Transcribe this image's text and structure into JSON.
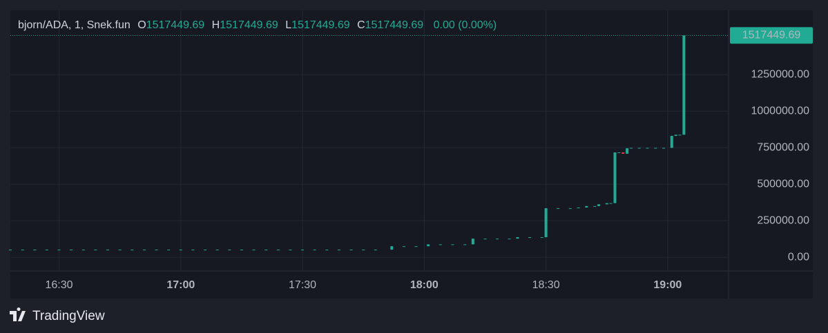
{
  "chart_data": {
    "type": "candlestick",
    "header": {
      "symbol": "bjorn/ADA, 1, Snek.fun",
      "o_label": "O",
      "o": 1517449.69,
      "h_label": "H",
      "h": 1517449.69,
      "l_label": "L",
      "l": 1517449.69,
      "c_label": "C",
      "c": 1517449.69,
      "change": "0.00 (0.00%)"
    },
    "brand": "TradingView",
    "up_color": "#22ab94",
    "down_color": "#f23645",
    "grid": true,
    "last_price": 1517449.69,
    "xlim": [
      "16:18",
      "19:15"
    ],
    "xticks": [
      "16:30",
      "17:00",
      "17:30",
      "18:00",
      "18:30",
      "19:00"
    ],
    "ylim": [
      -94000,
      1689000
    ],
    "yticks": [
      {
        "value": 0,
        "label": "0.00"
      },
      {
        "value": 250000,
        "label": "250000.00"
      },
      {
        "value": 500000,
        "label": "500000.00"
      },
      {
        "value": 750000,
        "label": "750000.00"
      },
      {
        "value": 1000000,
        "label": "1000000.00"
      },
      {
        "value": 1250000,
        "label": "1250000.00"
      }
    ],
    "x": [
      "16:18",
      "16:21",
      "16:24",
      "16:27",
      "16:30",
      "16:33",
      "16:36",
      "16:39",
      "16:42",
      "16:45",
      "16:48",
      "16:51",
      "16:54",
      "16:57",
      "17:00",
      "17:03",
      "17:06",
      "17:09",
      "17:12",
      "17:15",
      "17:18",
      "17:21",
      "17:24",
      "17:27",
      "17:30",
      "17:33",
      "17:36",
      "17:39",
      "17:42",
      "17:45",
      "17:48",
      "17:52",
      "17:55",
      "17:58",
      "18:01",
      "18:04",
      "18:07",
      "18:10",
      "18:12",
      "18:15",
      "18:18",
      "18:21",
      "18:23",
      "18:26",
      "18:29",
      "18:30",
      "18:33",
      "18:36",
      "18:38",
      "18:40",
      "18:42",
      "18:43",
      "18:45",
      "18:46",
      "18:47",
      "18:48",
      "18:49",
      "18:50",
      "18:51",
      "18:53",
      "18:55",
      "18:57",
      "18:59",
      "19:01",
      "19:02",
      "19:03",
      "19:04"
    ],
    "open": [
      52000,
      52000,
      52000,
      52000,
      52000,
      52000,
      52000,
      52000,
      52000,
      52000,
      52000,
      52000,
      52000,
      52000,
      52000,
      52000,
      52000,
      52000,
      52000,
      52000,
      52000,
      52000,
      52000,
      52000,
      52000,
      52000,
      52000,
      52000,
      52000,
      52000,
      52000,
      52000,
      75000,
      75000,
      75000,
      88000,
      88000,
      88000,
      88000,
      127000,
      127000,
      127000,
      127000,
      137000,
      137000,
      137000,
      335000,
      335000,
      335000,
      340000,
      350000,
      350000,
      362000,
      370000,
      370000,
      717000,
      717000,
      708000,
      745000,
      748000,
      748000,
      748000,
      748000,
      748000,
      830000,
      838000,
      838000
    ],
    "high": [
      52000,
      52000,
      52000,
      52000,
      52000,
      52000,
      52000,
      52000,
      52000,
      52000,
      52000,
      52000,
      52000,
      52000,
      52000,
      52000,
      52000,
      52000,
      52000,
      52000,
      52000,
      52000,
      52000,
      52000,
      52000,
      52000,
      52000,
      52000,
      52000,
      52000,
      52000,
      75000,
      75000,
      75000,
      88000,
      88000,
      88000,
      88000,
      127000,
      127000,
      127000,
      127000,
      137000,
      137000,
      137000,
      335000,
      335000,
      335000,
      340000,
      350000,
      350000,
      362000,
      370000,
      370000,
      717000,
      717000,
      717000,
      745000,
      748000,
      748000,
      748000,
      748000,
      748000,
      830000,
      838000,
      838000,
      1517449.69
    ],
    "low": [
      52000,
      52000,
      52000,
      52000,
      52000,
      52000,
      52000,
      52000,
      52000,
      52000,
      52000,
      52000,
      52000,
      52000,
      52000,
      52000,
      52000,
      52000,
      52000,
      52000,
      52000,
      52000,
      52000,
      52000,
      52000,
      52000,
      52000,
      52000,
      52000,
      52000,
      52000,
      52000,
      75000,
      75000,
      75000,
      88000,
      88000,
      88000,
      88000,
      127000,
      127000,
      127000,
      127000,
      137000,
      137000,
      137000,
      335000,
      335000,
      335000,
      340000,
      350000,
      350000,
      362000,
      370000,
      370000,
      717000,
      708000,
      708000,
      745000,
      748000,
      748000,
      748000,
      748000,
      748000,
      830000,
      838000,
      838000
    ],
    "close": [
      52000,
      52000,
      52000,
      52000,
      52000,
      52000,
      52000,
      52000,
      52000,
      52000,
      52000,
      52000,
      52000,
      52000,
      52000,
      52000,
      52000,
      52000,
      52000,
      52000,
      52000,
      52000,
      52000,
      52000,
      52000,
      52000,
      52000,
      52000,
      52000,
      52000,
      52000,
      75000,
      75000,
      75000,
      88000,
      88000,
      88000,
      88000,
      127000,
      127000,
      127000,
      127000,
      137000,
      137000,
      137000,
      335000,
      335000,
      335000,
      340000,
      350000,
      350000,
      362000,
      370000,
      370000,
      717000,
      717000,
      708000,
      745000,
      748000,
      748000,
      748000,
      748000,
      748000,
      830000,
      838000,
      838000,
      1517449.69
    ]
  }
}
